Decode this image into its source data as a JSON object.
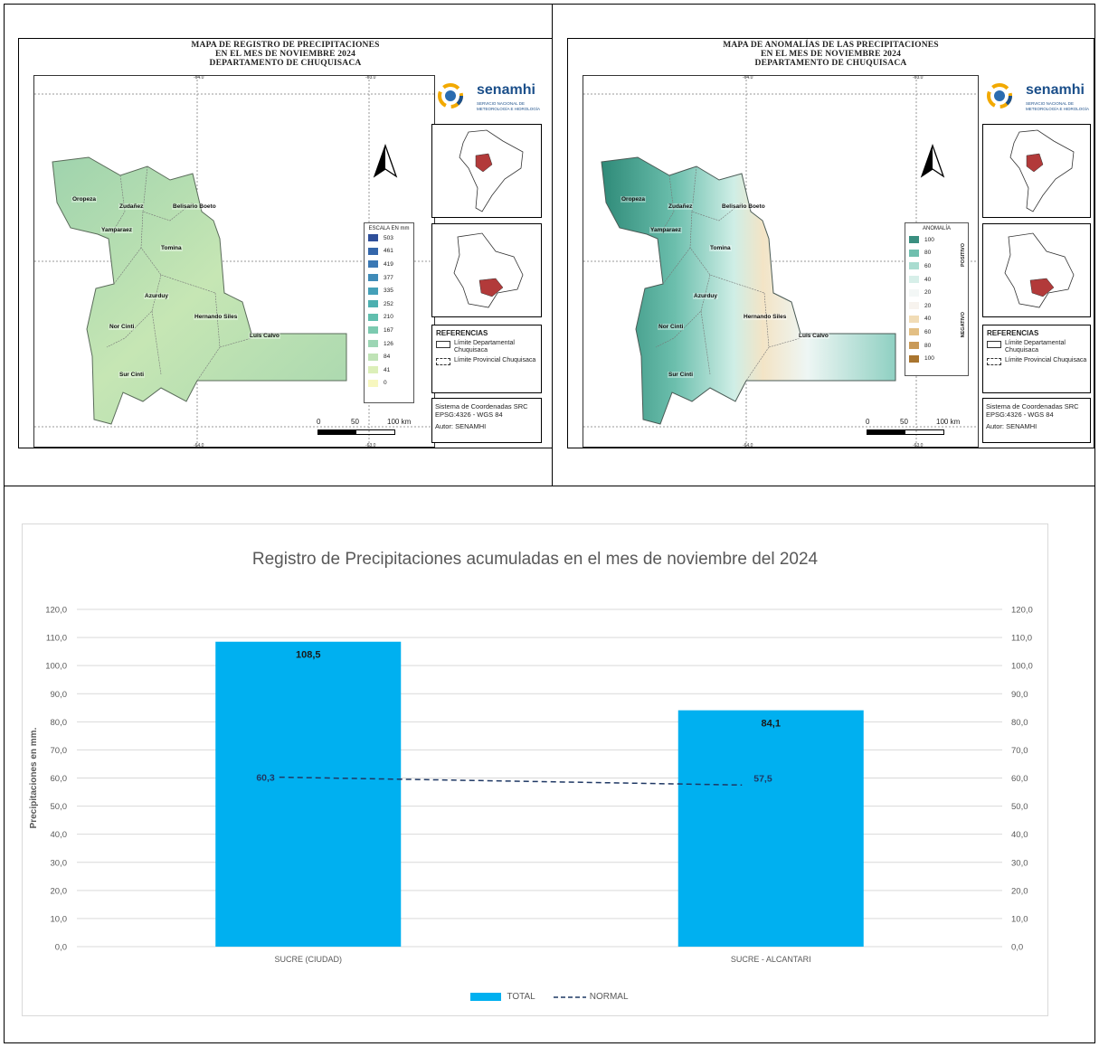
{
  "map1": {
    "title_lines": [
      "MAPA DE REGISTRO DE  PRECIPITACIONES",
      "EN EL MES DE NOVIEMBRE 2024",
      "DEPARTAMENTO DE CHUQUISACA"
    ],
    "legend_title": "ESCALA EN mm",
    "legend_values": [
      "503",
      "461",
      "419",
      "377",
      "335",
      "252",
      "210",
      "167",
      "126",
      "84",
      "41",
      "0"
    ],
    "legend_colors": [
      "#2f4f9a",
      "#3466aa",
      "#3a78b4",
      "#3f8bb8",
      "#44a0b8",
      "#4cb0b0",
      "#60bfae",
      "#7ccab0",
      "#9cd6b4",
      "#bfe3b6",
      "#dcefb9",
      "#f7f7bf"
    ]
  },
  "map2": {
    "title_lines": [
      "MAPA DE ANOMALÍAS DE LAS PRECIPITACIONES",
      "EN EL MES DE NOVIEMBRE 2024",
      "DEPARTAMENTO DE CHUQUISACA"
    ],
    "legend_title": "ANOMALÍA",
    "positive_label": "POSITIVO",
    "negative_label": "NEGATIVO",
    "legend_values": [
      "100",
      "80",
      "60",
      "40",
      "20",
      "20",
      "40",
      "60",
      "80",
      "100"
    ],
    "legend_colors": [
      "#3a8f80",
      "#6fbfae",
      "#a9dcd0",
      "#d7efe9",
      "#f3f7f6",
      "#f7f3ee",
      "#f1dcb6",
      "#e3bf84",
      "#c99a58",
      "#a9752f"
    ]
  },
  "provinces": [
    "Oropeza",
    "Zudañez",
    "Belisario Boeto",
    "Yamparaez",
    "Tomina",
    "Azurduy",
    "Nor Cinti",
    "Hernando Siles",
    "Luis Calvo",
    "Sur Cinti"
  ],
  "grid_labels": {
    "lon_a": "-64.0",
    "lon_b": "-63.0",
    "lat_a": "-19.0",
    "lat_b": "-20.0",
    "lat_c": "-21.0"
  },
  "logo": {
    "name": "senamhi",
    "subtitle_1": "SERVICIO NACIONAL DE",
    "subtitle_2": "METEOROLOGÍA E HIDROLOGÍA"
  },
  "references": {
    "title": "REFERENCIAS",
    "dept_label": "Límite Departamental Chuquisaca",
    "prov_label": "Límite Provincial Chuquisaca"
  },
  "coords": {
    "line1": "Sistema de Coordenadas SRC",
    "line2": "EPSG:4326 - WGS 84",
    "author": "Autor: SENAMHI"
  },
  "scale": {
    "zero": "0",
    "mid": "50",
    "end": "100 km"
  },
  "chart_data": {
    "type": "bar",
    "title": "Registro de Precipitaciones acumuladas en el mes de  noviembre del 2024",
    "ylabel": "Precipitaciones en mm.",
    "xlabel": "",
    "categories": [
      "SUCRE (CIUDAD)",
      "SUCRE - ALCANTARI"
    ],
    "series": [
      {
        "name": "TOTAL",
        "type": "bar",
        "values": [
          108.5,
          84.1
        ],
        "labels": [
          "108,5",
          "84,1"
        ],
        "color": "#00b0f0"
      },
      {
        "name": "NORMAL",
        "type": "line",
        "dashed": true,
        "values": [
          60.3,
          57.5
        ],
        "labels": [
          "60,3",
          "57,5"
        ],
        "color": "#1f3864"
      }
    ],
    "ylim": [
      0,
      120
    ],
    "yticks": [
      "0,0",
      "10,0",
      "20,0",
      "30,0",
      "40,0",
      "50,0",
      "60,0",
      "70,0",
      "80,0",
      "90,0",
      "100,0",
      "110,0",
      "120,0"
    ],
    "grid": true,
    "secondary_axis": true,
    "legend_position": "bottom"
  }
}
